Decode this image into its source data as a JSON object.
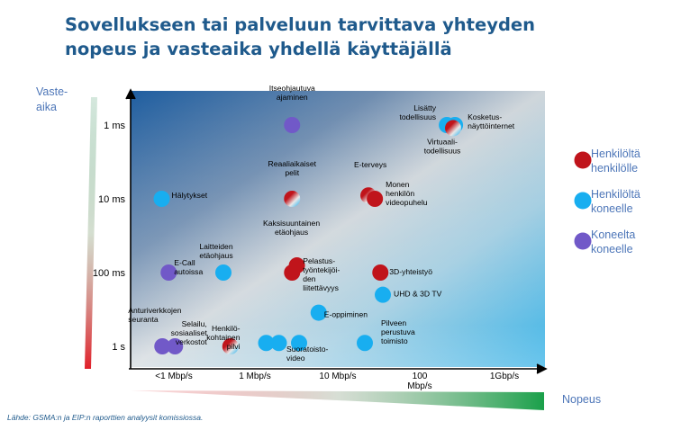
{
  "title": {
    "line1": "Sovellukseen tai palveluun tarvittava yhteyden",
    "line2": "nopeus ja vasteaika yhdellä käyttäjällä"
  },
  "source": "Lähde: GSMA:n ja EIP:n raporttien analyysit komissiossa.",
  "colors": {
    "title": "#1f5a8c",
    "legend_text": "#4d76b8",
    "person_to_person": "#c0141b",
    "person_to_machine": "#18aef0",
    "machine_to_machine": "#7159c8",
    "y_arrow_top": "#2e8b57",
    "y_arrow_bottom": "#e0202a",
    "x_arrow_left": "#e0202a",
    "x_arrow_right": "#1aa04a"
  },
  "chart_data": {
    "type": "scatter",
    "xlabel": "Nopeus",
    "ylabel": "Vaste-\naika",
    "x_ticks": [
      "<1 Mbp/s",
      "1 Mbp/s",
      "10 Mbp/s",
      "100\nMbp/s",
      "1Gbp/s"
    ],
    "y_ticks": [
      "1 ms",
      "10 ms",
      "100 ms",
      "1 s"
    ],
    "x_scale": "category-log",
    "y_scale": "log",
    "grid": false,
    "legend_position": "right",
    "legend": [
      {
        "key": "person_to_person",
        "label": "Henkilöltä\nhenkilölle"
      },
      {
        "key": "person_to_machine",
        "label": "Henkilöltä\nkoneelle"
      },
      {
        "key": "machine_to_machine",
        "label": "Koneelta\nkoneelle"
      }
    ],
    "points": [
      {
        "label": "Itseohjautuva\najaminen",
        "x": 15,
        "y": 1,
        "cat": [
          "machine_to_machine"
        ]
      },
      {
        "label": "Lisätty\ntodellisuus",
        "x": 850,
        "y": 1,
        "cat": [
          "person_to_machine"
        ]
      },
      {
        "label": "Kosketus-\nnäyttöinternet",
        "x": 1050,
        "y": 1,
        "cat": [
          "person_to_machine"
        ]
      },
      {
        "label": "Virtuaali-\ntodellisuus",
        "x": 1000,
        "y": 1.1,
        "cat": [
          "person_to_person",
          "person_to_machine"
        ]
      },
      {
        "label": "Hälytykset",
        "x": 0.5,
        "y": 10,
        "cat": [
          "person_to_machine"
        ]
      },
      {
        "label": "Reaaliaikaiset\npelit",
        "x": 15,
        "y": 10,
        "cat": [
          "person_to_person",
          "person_to_machine"
        ]
      },
      {
        "label": "E-terveys",
        "x": 110,
        "y": 9,
        "cat": [
          "person_to_person",
          "person_to_machine"
        ]
      },
      {
        "label": "Monen\nhenkilön\nvideopuhelu",
        "x": 130,
        "y": 10,
        "cat": [
          "person_to_person"
        ]
      },
      {
        "label": "E-Call\nautoissa",
        "x": 0.6,
        "y": 100,
        "cat": [
          "machine_to_machine"
        ]
      },
      {
        "label": "Laitteiden\netäohjaus",
        "x": 2.5,
        "y": 100,
        "cat": [
          "person_to_machine"
        ]
      },
      {
        "label": "Kaksisuuntainen\netäohjaus",
        "x": 17,
        "y": 80,
        "cat": [
          "person_to_person"
        ]
      },
      {
        "label": "Pelastus-\ntyöntekijöi-\nden\nliitettävyys",
        "x": 15,
        "y": 100,
        "cat": [
          "person_to_person"
        ]
      },
      {
        "label": "3D-yhteistyö",
        "x": 150,
        "y": 100,
        "cat": [
          "person_to_person"
        ]
      },
      {
        "label": "UHD & 3D TV",
        "x": 160,
        "y": 200,
        "cat": [
          "person_to_machine"
        ]
      },
      {
        "label": "E-oppiminen",
        "x": 30,
        "y": 350,
        "cat": [
          "person_to_machine"
        ]
      },
      {
        "label": "Anturiverkkojen\nseuranta",
        "x": 0.6,
        "y": 1000,
        "cat": [
          "machine_to_machine",
          "machine_to_machine"
        ]
      },
      {
        "label": "Selailu,\nsosiaaliset\nverkostot",
        "x": 3,
        "y": 1000,
        "cat": [
          "person_to_person",
          "person_to_machine"
        ]
      },
      {
        "label": "Henkilö-\nkohtainen\npilvi",
        "x": 9,
        "y": 900,
        "cat": [
          "person_to_machine",
          "person_to_machine"
        ]
      },
      {
        "label": "Suoratoisto-\nvideo",
        "x": 18,
        "y": 900,
        "cat": [
          "person_to_machine"
        ]
      },
      {
        "label": "Pilveen\nperustuva\ntoimisto",
        "x": 100,
        "y": 900,
        "cat": [
          "person_to_machine"
        ]
      }
    ]
  }
}
